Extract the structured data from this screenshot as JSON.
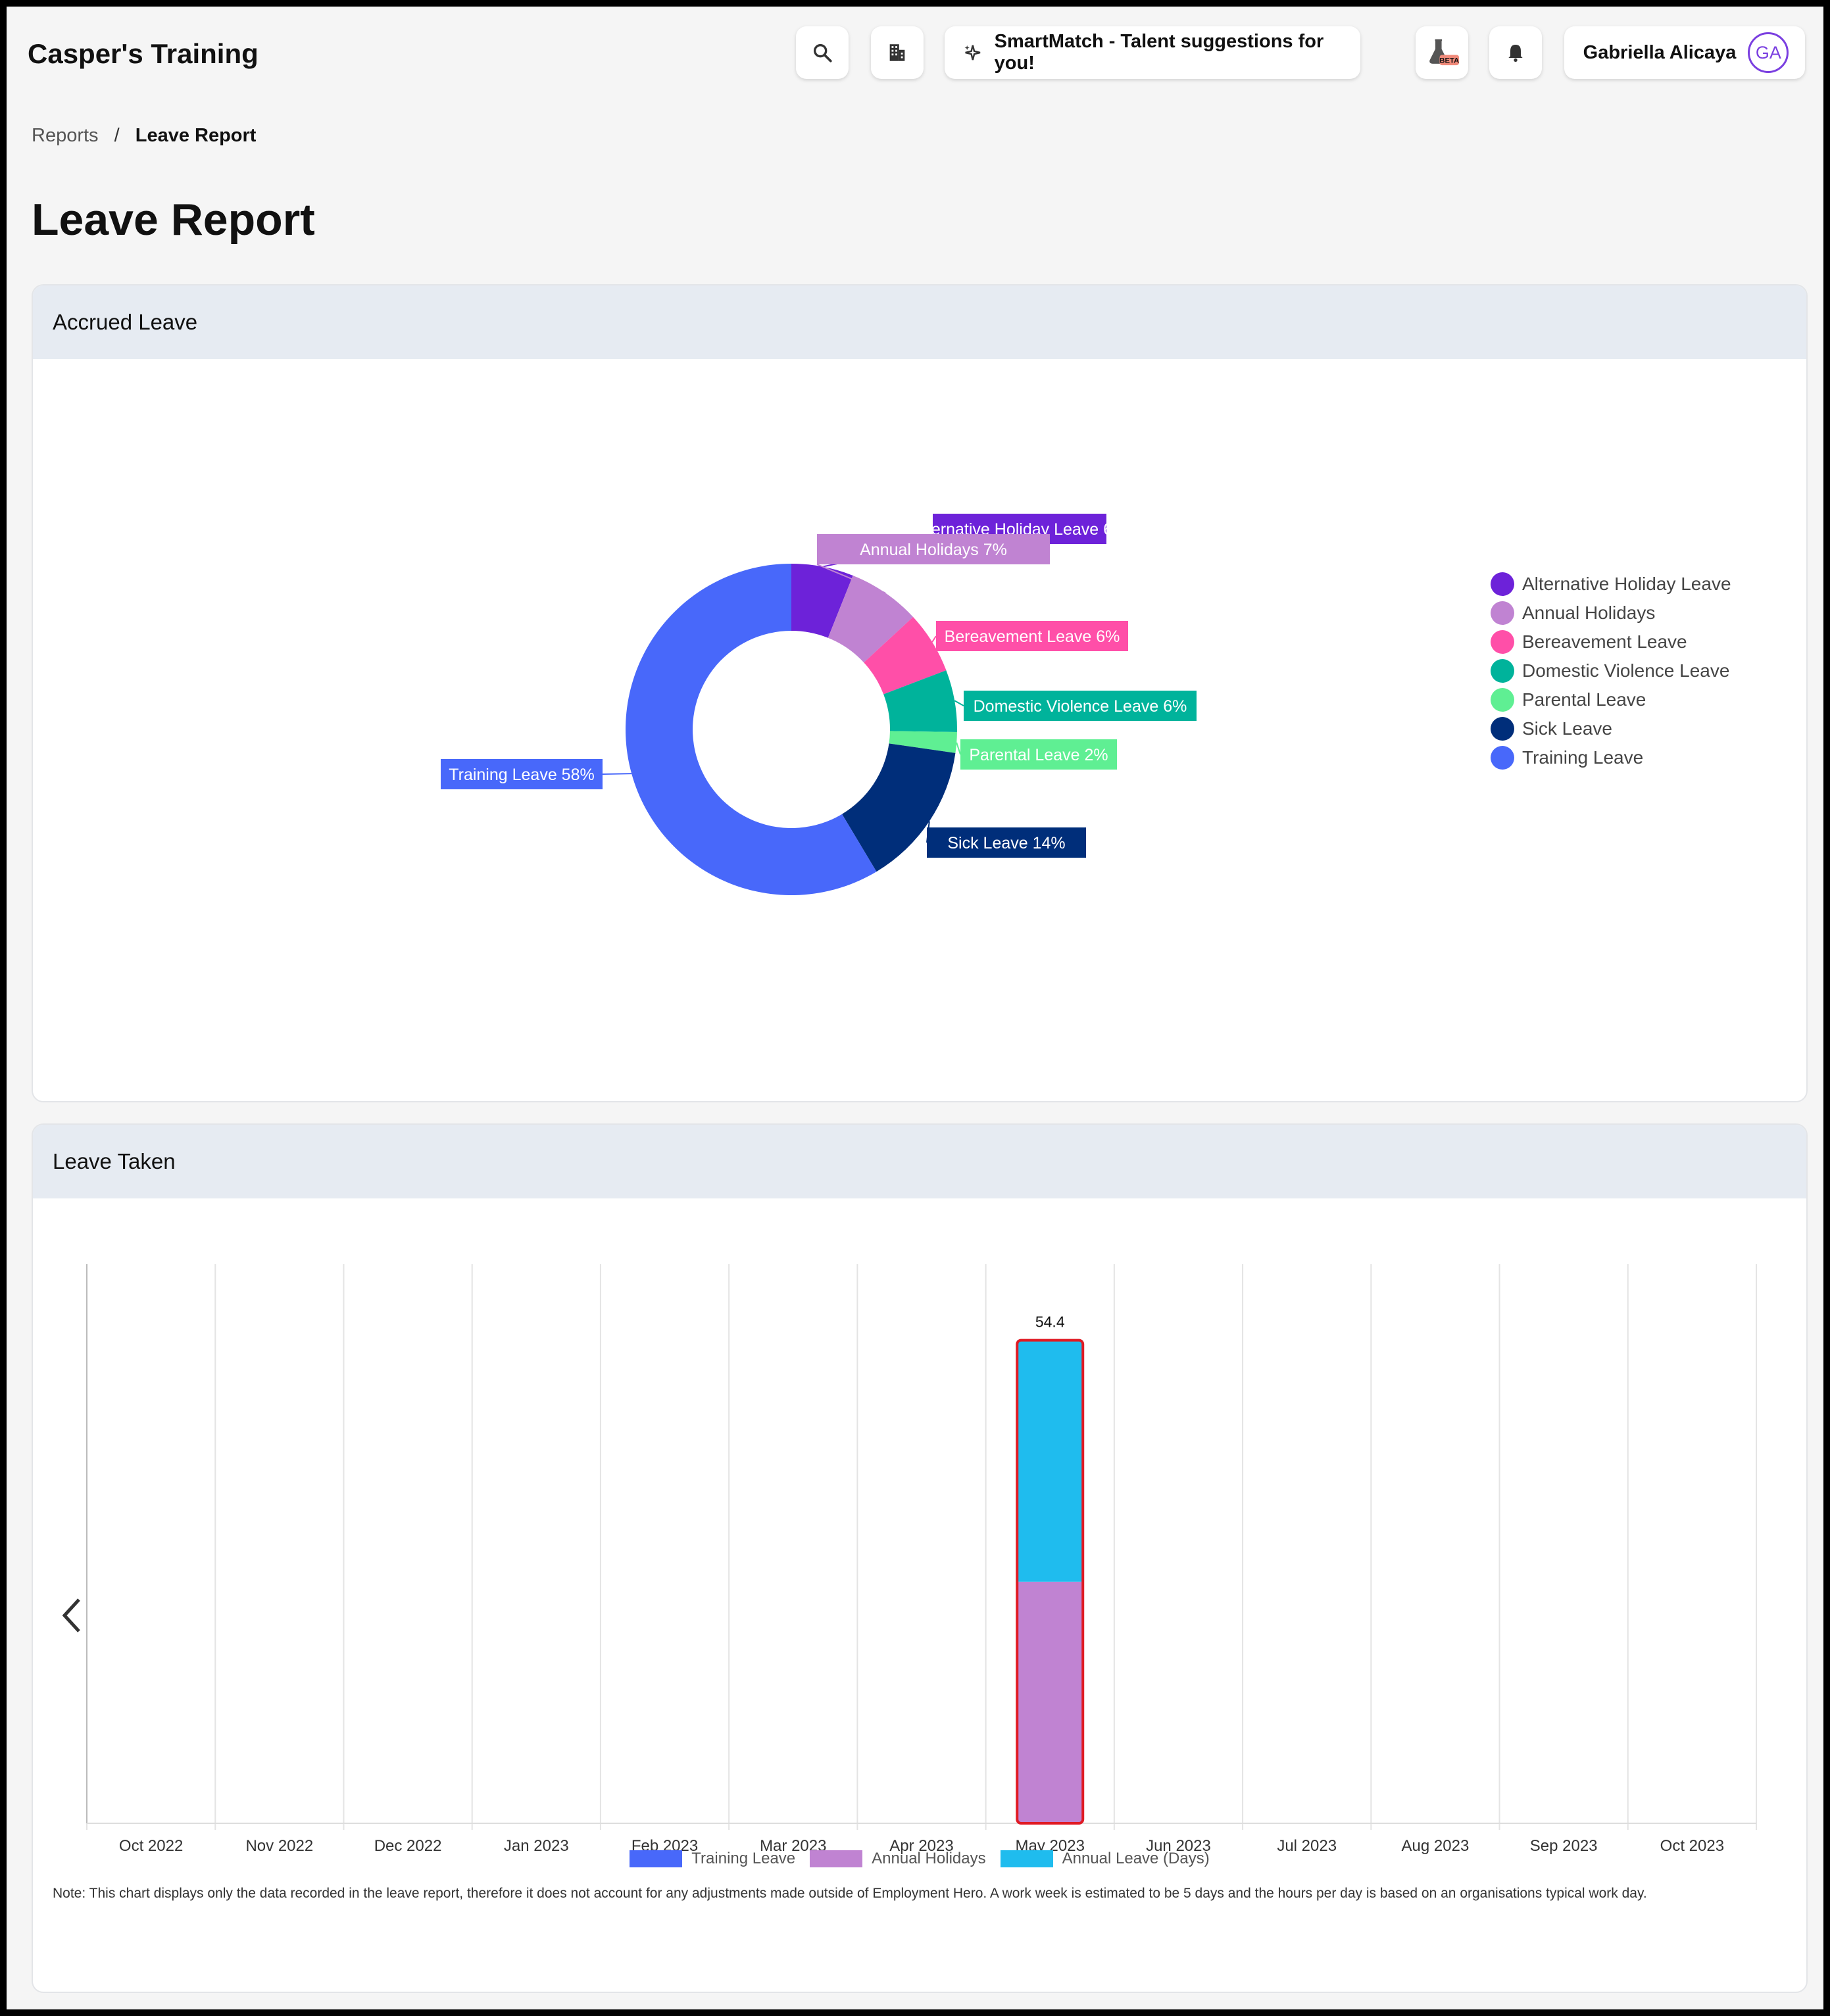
{
  "header": {
    "app_title": "Casper's Training",
    "smartmatch_label": "SmartMatch - Talent suggestions for you!",
    "user_name": "Gabriella Alicaya",
    "user_initials": "GA",
    "beta_badge": "BETA",
    "icons": [
      "search-icon",
      "building-icon",
      "sparkle-icon",
      "flask-icon",
      "bell-icon"
    ]
  },
  "breadcrumb": {
    "parent": "Reports",
    "separator": "/",
    "current": "Leave Report"
  },
  "page_title": "Leave Report",
  "accrued": {
    "title": "Accrued Leave",
    "legend": [
      "Alternative Holiday Leave",
      "Annual Holidays",
      "Bereavement Leave",
      "Domestic Violence Leave",
      "Parental Leave",
      "Sick Leave",
      "Training Leave"
    ]
  },
  "taken": {
    "title": "Leave Taken",
    "legend": [
      "Training Leave",
      "Annual Holidays",
      "Annual Leave (Days)"
    ],
    "note": "Note: This chart displays only the data recorded in the leave report, therefore it does not account for any adjustments made outside of Employment Hero. A work week is estimated to be 5 days and the hours per day is based on an organisations typical work day."
  },
  "colors": {
    "Alternative Holiday Leave": "#6d22d9",
    "Annual Holidays": "#c083d2",
    "Bereavement Leave": "#ff4fa8",
    "Domestic Violence Leave": "#00b39b",
    "Parental Leave": "#5fef93",
    "Sick Leave": "#002e7a",
    "Training Leave": "#4868fa",
    "Annual Leave (Days)": "#1fbcee",
    "selection": "#e01b24"
  },
  "chart_data": [
    {
      "type": "pie",
      "donut": true,
      "title": "Accrued Leave",
      "slices": [
        {
          "label": "Alternative Holiday Leave",
          "value": 6,
          "text": "Alternative Holiday Leave 6%"
        },
        {
          "label": "Annual Holidays",
          "value": 7,
          "text": "Annual Holidays 7%"
        },
        {
          "label": "Bereavement Leave",
          "value": 6,
          "text": "Bereavement Leave 6%"
        },
        {
          "label": "Domestic Violence Leave",
          "value": 6,
          "text": "Domestic Violence Leave 6%"
        },
        {
          "label": "Parental Leave",
          "value": 2,
          "text": "Parental Leave 2%"
        },
        {
          "label": "Sick Leave",
          "value": 14,
          "text": "Sick Leave 14%"
        },
        {
          "label": "Training Leave",
          "value": 58,
          "text": "Training Leave 58%"
        }
      ],
      "legend_position": "right"
    },
    {
      "type": "bar",
      "stacked": true,
      "title": "Leave Taken",
      "categories": [
        "Oct 2022",
        "Nov 2022",
        "Dec 2022",
        "Jan 2023",
        "Feb 2023",
        "Mar 2023",
        "Apr 2023",
        "May 2023",
        "Jun 2023",
        "Jul 2023",
        "Aug 2023",
        "Sep 2023",
        "Oct 2023"
      ],
      "series": [
        {
          "name": "Training Leave",
          "values": [
            0,
            0,
            0,
            0,
            0,
            0,
            0,
            0,
            0,
            0,
            0,
            0,
            0
          ]
        },
        {
          "name": "Annual Holidays",
          "values": [
            0,
            0,
            0,
            0,
            0,
            0,
            0,
            27.2,
            0,
            0,
            0,
            0,
            0
          ]
        },
        {
          "name": "Annual Leave (Days)",
          "values": [
            0,
            0,
            0,
            0,
            0,
            0,
            0,
            27.2,
            0,
            0,
            0,
            0,
            0
          ]
        }
      ],
      "totals_labels": [
        {
          "category": "May 2023",
          "text": "54.4"
        }
      ],
      "selected_category": "May 2023",
      "ylim": [
        0,
        60
      ],
      "grid": true,
      "legend_position": "bottom"
    }
  ]
}
